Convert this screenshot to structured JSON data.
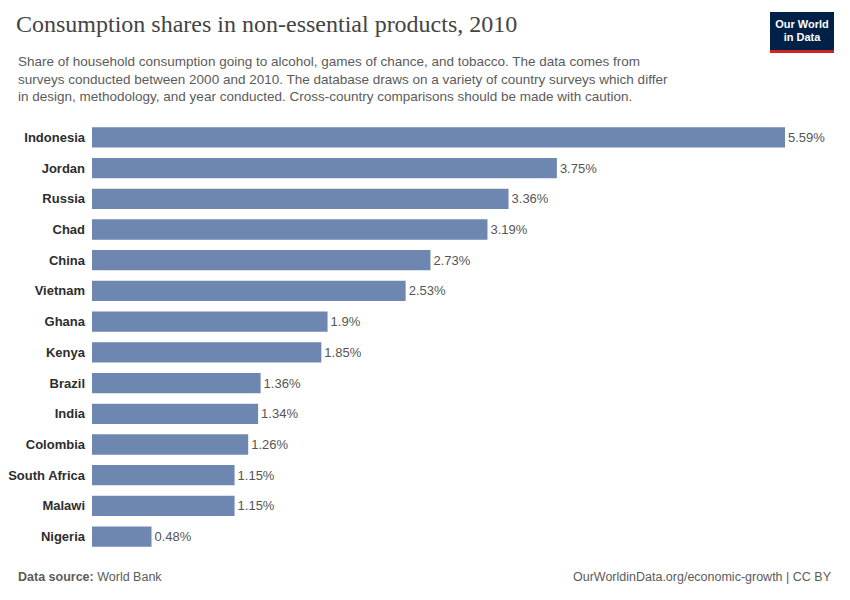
{
  "chart_data": {
    "type": "bar",
    "orientation": "horizontal",
    "title": "Consumption shares in non-essential products, 2010",
    "subtitle": [
      "Share of household consumption going to alcohol, games of chance, and tobacco. The data comes from",
      "surveys conducted between 2000 and 2010. The database draws on a variety of country surveys which differ",
      "in design, methodology, and year conducted. Cross-country comparisons should be made with caution."
    ],
    "logo": [
      "Our World",
      "in Data"
    ],
    "source_label": "Data source:",
    "source": "World Bank",
    "footer_right": "OurWorldinData.org/economic-growth | CC BY",
    "categories": [
      "Indonesia",
      "Jordan",
      "Russia",
      "Chad",
      "China",
      "Vietnam",
      "Ghana",
      "Kenya",
      "Brazil",
      "India",
      "Colombia",
      "South Africa",
      "Malawi",
      "Nigeria"
    ],
    "values": [
      5.59,
      3.75,
      3.36,
      3.19,
      2.73,
      2.53,
      1.9,
      1.85,
      1.36,
      1.34,
      1.26,
      1.15,
      1.15,
      0.48
    ],
    "value_labels": [
      "5.59%",
      "3.75%",
      "3.36%",
      "3.19%",
      "2.73%",
      "2.53%",
      "1.9%",
      "1.85%",
      "1.36%",
      "1.34%",
      "1.26%",
      "1.15%",
      "1.15%",
      "0.48%"
    ],
    "color": "#6e87b1",
    "xlim": [
      0,
      5.59
    ],
    "data_labels": true,
    "grid": false,
    "tick_labels": "y"
  }
}
